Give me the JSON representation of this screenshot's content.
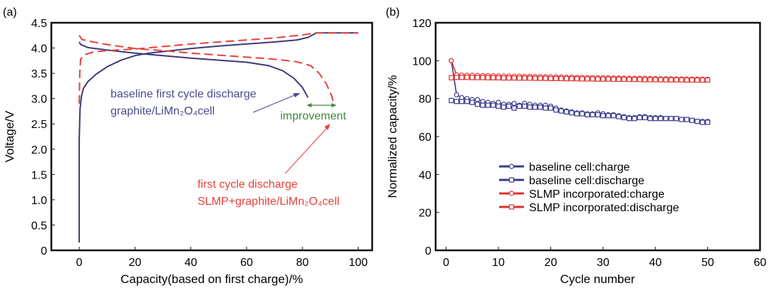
{
  "chart_data": [
    {
      "panel_label": "(a)",
      "type": "line",
      "xlabel": "Capacity(based on first charge)/%",
      "ylabel": "Voltage/V",
      "xlim": [
        -10,
        105
      ],
      "ylim": [
        0,
        4.5
      ],
      "xticks": [
        0,
        20,
        40,
        60,
        80,
        100
      ],
      "yticks": [
        "0",
        "0.5",
        "1.0",
        "1.5",
        "2.0",
        "2.5",
        "3.0",
        "3.5",
        "4.0",
        "4.5"
      ],
      "grid": false,
      "series": [
        {
          "color": "#3b3a78",
          "style": "solid",
          "points": [
            [
              0,
              0.15
            ],
            [
              0,
              2.2
            ],
            [
              0.3,
              2.8
            ],
            [
              0.8,
              3.05
            ],
            [
              1.5,
              3.2
            ],
            [
              3,
              3.33
            ],
            [
              6,
              3.48
            ],
            [
              10,
              3.63
            ],
            [
              15,
              3.76
            ],
            [
              20,
              3.85
            ],
            [
              25,
              3.9
            ],
            [
              30,
              3.93
            ],
            [
              40,
              3.99
            ],
            [
              50,
              4.04
            ],
            [
              60,
              4.08
            ],
            [
              70,
              4.12
            ],
            [
              78,
              4.16
            ],
            [
              82,
              4.21
            ],
            [
              85,
              4.3
            ],
            [
              100,
              4.3
            ]
          ]
        },
        {
          "color": "#3b3a78",
          "style": "solid",
          "points": [
            [
              0,
              4.12
            ],
            [
              0.5,
              4.07
            ],
            [
              3,
              4.01
            ],
            [
              10,
              3.96
            ],
            [
              20,
              3.9
            ],
            [
              30,
              3.85
            ],
            [
              40,
              3.8
            ],
            [
              50,
              3.76
            ],
            [
              60,
              3.72
            ],
            [
              68,
              3.65
            ],
            [
              73,
              3.55
            ],
            [
              77,
              3.4
            ],
            [
              80,
              3.22
            ],
            [
              82,
              3.02
            ]
          ]
        },
        {
          "color": "#e8413a",
          "style": "dashed",
          "points": [
            [
              0,
              2.9
            ],
            [
              0.2,
              3.5
            ],
            [
              0.5,
              3.78
            ],
            [
              2,
              3.87
            ],
            [
              5,
              3.92
            ],
            [
              10,
              3.95
            ],
            [
              20,
              3.98
            ],
            [
              30,
              4.03
            ],
            [
              40,
              4.08
            ],
            [
              50,
              4.12
            ],
            [
              60,
              4.16
            ],
            [
              70,
              4.2
            ],
            [
              80,
              4.26
            ],
            [
              85,
              4.3
            ],
            [
              100,
              4.3
            ]
          ]
        },
        {
          "color": "#e8413a",
          "style": "dashed",
          "points": [
            [
              0,
              4.25
            ],
            [
              1,
              4.17
            ],
            [
              5,
              4.12
            ],
            [
              10,
              4.07
            ],
            [
              20,
              3.99
            ],
            [
              30,
              3.95
            ],
            [
              40,
              3.9
            ],
            [
              50,
              3.86
            ],
            [
              60,
              3.82
            ],
            [
              70,
              3.78
            ],
            [
              78,
              3.73
            ],
            [
              83,
              3.65
            ],
            [
              86,
              3.5
            ],
            [
              88.5,
              3.3
            ],
            [
              90.5,
              3.05
            ],
            [
              91,
              2.95
            ]
          ]
        }
      ],
      "annotations": {
        "baseline_line1": "baseline first cycle discharge",
        "baseline_line2": "graphite/LiMn₂O₄cell",
        "improvement": "improvement",
        "slmp_line1": "first cycle discharge",
        "slmp_line2": "SLMP+graphite/LiMn₂O₄cell",
        "baseline_color": "#4a4a8c",
        "improvement_color": "#3d8a3a",
        "slmp_color": "#e8413a"
      }
    },
    {
      "panel_label": "(b)",
      "type": "line",
      "xlabel": "Cycle number",
      "ylabel": "Normalized capacity/%",
      "xlim": [
        -2,
        60
      ],
      "ylim": [
        0,
        120
      ],
      "xticks": [
        0,
        10,
        20,
        30,
        40,
        50,
        60
      ],
      "yticks": [
        0,
        20,
        40,
        60,
        80,
        100,
        120
      ],
      "grid": false,
      "legend_placement": "center",
      "series": [
        {
          "name": "baseline cell:charge",
          "color": "#3b3a8c",
          "marker": "circle",
          "values": [
            100,
            82,
            80.5,
            80,
            79.5,
            79.5,
            78.5,
            78,
            77.5,
            78,
            77,
            77,
            77.5,
            76.5,
            77.5,
            77,
            76.5,
            76.5,
            76.5,
            76,
            75,
            74,
            73.5,
            73,
            72.5,
            72.5,
            72,
            72,
            72.5,
            72,
            71.5,
            71.5,
            71,
            70.5,
            70,
            70,
            70.5,
            70.5,
            70,
            70,
            70,
            69.5,
            69.5,
            69.5,
            69,
            69,
            68.5,
            68,
            68,
            68
          ]
        },
        {
          "name": "baseline cell:discharge",
          "color": "#3b3a8c",
          "marker": "square",
          "values": [
            79,
            78.5,
            78.5,
            78.5,
            78,
            77,
            76.5,
            76.5,
            76.5,
            76,
            75.5,
            76,
            75,
            76,
            76,
            75.5,
            75.5,
            75.5,
            75,
            75,
            74,
            73.5,
            73,
            72.5,
            72,
            72,
            71.5,
            71.5,
            71.5,
            71,
            71,
            71,
            70.5,
            70,
            69.5,
            69.5,
            70,
            70,
            69.5,
            69.5,
            69.5,
            69.5,
            69.5,
            69.5,
            69,
            69,
            68.5,
            68,
            67.5,
            67.5
          ]
        },
        {
          "name": "SLMP incorporated:charge",
          "color": "#e03030",
          "marker": "circle",
          "values": [
            100,
            92.5,
            92.4,
            92.3,
            92.3,
            92.2,
            92.1,
            92.1,
            92,
            92,
            91.9,
            91.9,
            91.8,
            91.8,
            91.7,
            91.7,
            91.6,
            91.6,
            91.5,
            91.5,
            91.4,
            91.4,
            91.3,
            91.3,
            91.2,
            91.2,
            91.1,
            91.1,
            91,
            91,
            91,
            90.9,
            90.9,
            90.8,
            90.8,
            90.7,
            90.7,
            90.7,
            90.6,
            90.6,
            90.5,
            90.5,
            90.5,
            90.4,
            90.4,
            90.4,
            90.3,
            90.3,
            90.2,
            90.2
          ]
        },
        {
          "name": "SLMP incorporated:discharge",
          "color": "#e03030",
          "marker": "square",
          "values": [
            91,
            91.2,
            91.2,
            91.2,
            91.1,
            91.1,
            91.1,
            91,
            91,
            91,
            90.9,
            90.9,
            90.9,
            90.8,
            90.8,
            90.8,
            90.7,
            90.7,
            90.7,
            90.6,
            90.6,
            90.6,
            90.5,
            90.5,
            90.5,
            90.4,
            90.4,
            90.4,
            90.3,
            90.3,
            90.3,
            90.2,
            90.2,
            90.2,
            90.1,
            90.1,
            90.1,
            90,
            90,
            90,
            90,
            89.9,
            89.9,
            89.9,
            89.9,
            89.8,
            89.8,
            89.8,
            89.8,
            89.8
          ]
        }
      ]
    }
  ]
}
